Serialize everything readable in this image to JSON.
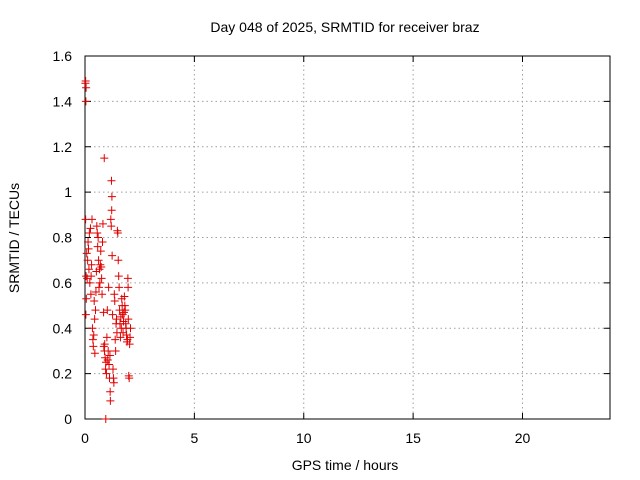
{
  "chart_data": {
    "type": "scatter",
    "title": "Day 048 of 2025, SRMTID for receiver braz",
    "xlabel": "GPS time / hours",
    "ylabel": "SRMTID / TECUs",
    "xlim": [
      0,
      24
    ],
    "ylim": [
      0,
      1.6
    ],
    "xticks": [
      0,
      5,
      10,
      15,
      20
    ],
    "yticks": [
      0,
      0.2,
      0.4,
      0.6,
      0.8,
      1,
      1.2,
      1.4,
      1.6
    ],
    "xtick_labels": [
      "0",
      "5",
      "10",
      "15",
      "20"
    ],
    "ytick_labels": [
      "0",
      "0.2",
      "0.4",
      "0.6",
      "0.8",
      "1",
      "1.2",
      "1.4",
      "1.6"
    ],
    "grid": true,
    "marker": "+",
    "color": "#e00000",
    "series": [
      {
        "name": "SRMTID",
        "points": [
          [
            0.02,
            1.48
          ],
          [
            0.03,
            1.49
          ],
          [
            0.05,
            1.46
          ],
          [
            0.04,
            1.4
          ],
          [
            0.03,
            0.88
          ],
          [
            0.05,
            0.63
          ],
          [
            0.04,
            0.46
          ],
          [
            0.06,
            0.53
          ],
          [
            0.08,
            0.73
          ],
          [
            0.1,
            0.62
          ],
          [
            0.12,
            0.7
          ],
          [
            0.14,
            0.78
          ],
          [
            0.16,
            0.75
          ],
          [
            0.18,
            0.66
          ],
          [
            0.2,
            0.82
          ],
          [
            0.22,
            0.6
          ],
          [
            0.25,
            0.84
          ],
          [
            0.27,
            0.55
          ],
          [
            0.28,
            0.63
          ],
          [
            0.3,
            0.68
          ],
          [
            0.32,
            0.88
          ],
          [
            0.34,
            0.4
          ],
          [
            0.36,
            0.35
          ],
          [
            0.38,
            0.32
          ],
          [
            0.4,
            0.37
          ],
          [
            0.42,
            0.52
          ],
          [
            0.44,
            0.44
          ],
          [
            0.45,
            0.29
          ],
          [
            0.48,
            0.48
          ],
          [
            0.5,
            0.56
          ],
          [
            0.52,
            0.65
          ],
          [
            0.54,
            0.85
          ],
          [
            0.56,
            0.82
          ],
          [
            0.58,
            0.76
          ],
          [
            0.6,
            0.8
          ],
          [
            0.62,
            0.7
          ],
          [
            0.64,
            0.58
          ],
          [
            0.66,
            0.66
          ],
          [
            0.68,
            0.6
          ],
          [
            0.7,
            0.68
          ],
          [
            0.72,
            0.74
          ],
          [
            0.74,
            0.67
          ],
          [
            0.76,
            0.62
          ],
          [
            0.78,
            0.55
          ],
          [
            0.8,
            0.78
          ],
          [
            0.82,
            0.86
          ],
          [
            0.85,
            0.47
          ],
          [
            0.86,
            0.32
          ],
          [
            0.88,
            1.15
          ],
          [
            0.89,
            0.3
          ],
          [
            0.9,
            0.33
          ],
          [
            0.92,
            0.27
          ],
          [
            0.94,
            0.22
          ],
          [
            0.96,
            0.25
          ],
          [
            0.98,
            0.2
          ],
          [
            0.95,
            0.0
          ],
          [
            1.0,
            0.36
          ],
          [
            1.02,
            0.48
          ],
          [
            1.04,
            0.26
          ],
          [
            1.06,
            0.3
          ],
          [
            1.08,
            0.58
          ],
          [
            1.1,
            0.24
          ],
          [
            1.12,
            0.18
          ],
          [
            1.14,
            0.28
          ],
          [
            1.15,
            0.12
          ],
          [
            1.16,
            0.08
          ],
          [
            1.18,
            0.88
          ],
          [
            1.2,
            0.85
          ],
          [
            1.21,
            1.05
          ],
          [
            1.22,
            0.92
          ],
          [
            1.23,
            0.98
          ],
          [
            1.24,
            0.72
          ],
          [
            1.26,
            0.46
          ],
          [
            1.28,
            0.22
          ],
          [
            1.3,
            0.18
          ],
          [
            1.32,
            0.16
          ],
          [
            1.34,
            0.55
          ],
          [
            1.36,
            0.52
          ],
          [
            1.38,
            0.35
          ],
          [
            1.4,
            0.3
          ],
          [
            1.42,
            0.42
          ],
          [
            1.44,
            0.44
          ],
          [
            1.46,
            0.38
          ],
          [
            1.48,
            0.83
          ],
          [
            1.5,
            0.82
          ],
          [
            1.52,
            0.7
          ],
          [
            1.54,
            0.63
          ],
          [
            1.56,
            0.58
          ],
          [
            1.58,
            0.48
          ],
          [
            1.6,
            0.42
          ],
          [
            1.62,
            0.36
          ],
          [
            1.64,
            0.45
          ],
          [
            1.66,
            0.4
          ],
          [
            1.68,
            0.53
          ],
          [
            1.7,
            0.5
          ],
          [
            1.72,
            0.46
          ],
          [
            1.74,
            0.38
          ],
          [
            1.76,
            0.43
          ],
          [
            1.78,
            0.47
          ],
          [
            1.8,
            0.54
          ],
          [
            1.82,
            0.5
          ],
          [
            1.84,
            0.48
          ],
          [
            1.86,
            0.42
          ],
          [
            1.88,
            0.4
          ],
          [
            1.9,
            0.37
          ],
          [
            1.92,
            0.34
          ],
          [
            1.94,
            0.35
          ],
          [
            1.96,
            0.62
          ],
          [
            1.97,
            0.58
          ],
          [
            1.98,
            0.44
          ],
          [
            2.0,
            0.19
          ],
          [
            2.02,
            0.18
          ],
          [
            2.04,
            0.33
          ],
          [
            2.06,
            0.36
          ],
          [
            2.08,
            0.4
          ]
        ]
      }
    ]
  }
}
